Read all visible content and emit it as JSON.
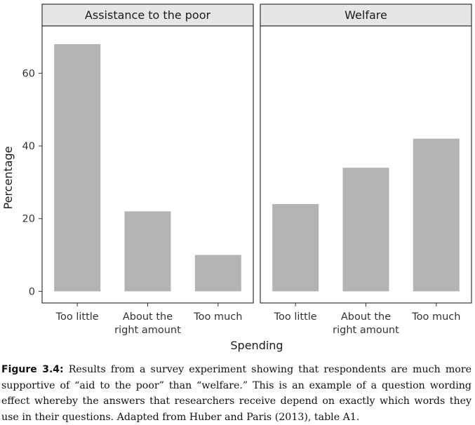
{
  "chart_data": {
    "type": "bar",
    "facets": [
      {
        "title": "Assistance to the poor",
        "categories": [
          [
            "Too little"
          ],
          [
            "About the",
            "right amount"
          ],
          [
            "Too much"
          ]
        ],
        "values": [
          68,
          22,
          10
        ]
      },
      {
        "title": "Welfare",
        "categories": [
          [
            "Too little"
          ],
          [
            "About the",
            "right amount"
          ],
          [
            "Too much"
          ]
        ],
        "values": [
          24,
          34,
          42
        ]
      }
    ],
    "xlabel": "Spending",
    "ylabel": "Percentage",
    "yticks": [
      0,
      20,
      40,
      60
    ],
    "ylim": [
      -3.2,
      73
    ],
    "bar_color": "#b3b3b5",
    "strip_color": "#e6e6e6",
    "grid": false
  },
  "caption": {
    "label": "Figure 3.4:",
    "text": " Results from a survey experiment showing that respondents are much more supportive of “aid to the poor” than “welfare.” This is an example of a question wording effect whereby the answers that researchers receive depend on exactly which words they use in their questions. Adapted from Huber and Paris (2013), table A1."
  }
}
